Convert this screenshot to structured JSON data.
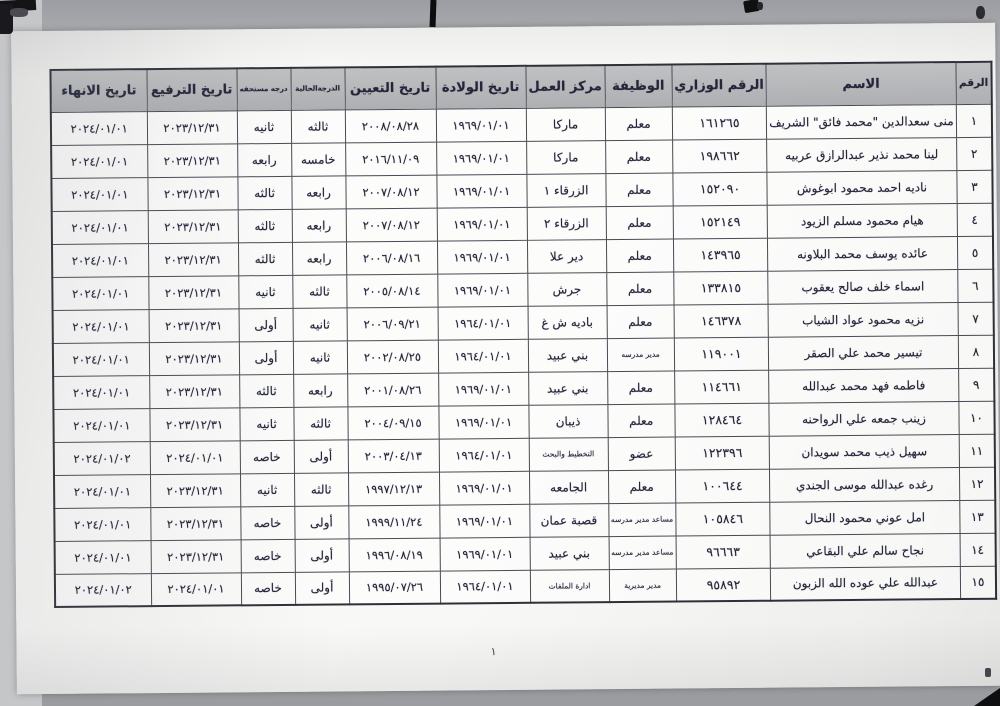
{
  "document": {
    "page_number": "١"
  },
  "table": {
    "columns": [
      "الرقم",
      "الاسم",
      "الرقم الوزاري",
      "الوظيفة",
      "مركز العمل",
      "تاريخ الولادة",
      "تاريخ التعيين",
      "الدرجةالحالية",
      "درجه مستحقه",
      "تاريخ الترفيع",
      "تاريخ الانهاء"
    ],
    "rows": [
      [
        "١",
        "منى سعدالدين \"محمد فائق\" الشريف",
        "١٦١٢٦٥",
        "معلم",
        "ماركا",
        "١٩٦٩/٠١/٠١",
        "٢٠٠٨/٠٨/٢٨",
        "ثالثه",
        "ثانيه",
        "٢٠٢٣/١٢/٣١",
        "٢٠٢٤/٠١/٠١"
      ],
      [
        "٢",
        "لينا محمد نذير عبدالرازق عربيه",
        "١٩٨٦٦٢",
        "معلم",
        "ماركا",
        "١٩٦٩/٠١/٠١",
        "٢٠١٦/١١/٠٩",
        "خامسه",
        "رابعه",
        "٢٠٢٣/١٢/٣١",
        "٢٠٢٤/٠١/٠١"
      ],
      [
        "٣",
        "ناديه احمد محمود ابوغوش",
        "١٥٢٠٩٠",
        "معلم",
        "الزرقاء ١",
        "١٩٦٩/٠١/٠١",
        "٢٠٠٧/٠٨/١٢",
        "رابعه",
        "ثالثه",
        "٢٠٢٣/١٢/٣١",
        "٢٠٢٤/٠١/٠١"
      ],
      [
        "٤",
        "هيام محمود مسلم الزيود",
        "١٥٢١٤٩",
        "معلم",
        "الزرقاء ٢",
        "١٩٦٩/٠١/٠١",
        "٢٠٠٧/٠٨/١٢",
        "رابعه",
        "ثالثه",
        "٢٠٢٣/١٢/٣١",
        "٢٠٢٤/٠١/٠١"
      ],
      [
        "٥",
        "عائده يوسف محمد البلاونه",
        "١٤٣٩٦٥",
        "معلم",
        "دير علا",
        "١٩٦٩/٠١/٠١",
        "٢٠٠٦/٠٨/١٦",
        "رابعه",
        "ثالثه",
        "٢٠٢٣/١٢/٣١",
        "٢٠٢٤/٠١/٠١"
      ],
      [
        "٦",
        "اسماء خلف صالح يعقوب",
        "١٣٣٨١٥",
        "معلم",
        "جرش",
        "١٩٦٩/٠١/٠١",
        "٢٠٠٥/٠٨/١٤",
        "ثالثه",
        "ثانيه",
        "٢٠٢٣/١٢/٣١",
        "٢٠٢٤/٠١/٠١"
      ],
      [
        "٧",
        "نزيه محمود عواد الشياب",
        "١٤٦٣٧٨",
        "معلم",
        "باديه ش غ",
        "١٩٦٤/٠١/٠١",
        "٢٠٠٦/٠٩/٢١",
        "ثانيه",
        "أولى",
        "٢٠٢٣/١٢/٣١",
        "٢٠٢٤/٠١/٠١"
      ],
      [
        "٨",
        "تيسير محمد علي الصقر",
        "١١٩٠٠١",
        "مدير مدرسه",
        "بني عبيد",
        "١٩٦٤/٠١/٠١",
        "٢٠٠٢/٠٨/٢٥",
        "ثانيه",
        "أولى",
        "٢٠٢٣/١٢/٣١",
        "٢٠٢٤/٠١/٠١"
      ],
      [
        "٩",
        "فاطمه فهد محمد عبدالله",
        "١١٤٦٦١",
        "معلم",
        "بني عبيد",
        "١٩٦٩/٠١/٠١",
        "٢٠٠١/٠٨/٢٦",
        "رابعه",
        "ثالثه",
        "٢٠٢٣/١٢/٣١",
        "٢٠٢٤/٠١/٠١"
      ],
      [
        "١٠",
        "زينب جمعه علي الرواحنه",
        "١٢٨٤٦٤",
        "معلم",
        "ذيبان",
        "١٩٦٩/٠١/٠١",
        "٢٠٠٤/٠٩/١٥",
        "ثالثه",
        "ثانيه",
        "٢٠٢٣/١٢/٣١",
        "٢٠٢٤/٠١/٠١"
      ],
      [
        "١١",
        "سهيل ذيب محمد سويدان",
        "١٢٢٣٩٦",
        "عضو",
        "التخطيط والبحث",
        "١٩٦٤/٠١/٠١",
        "٢٠٠٣/٠٤/١٣",
        "أولى",
        "خاصه",
        "٢٠٢٤/٠١/٠١",
        "٢٠٢٤/٠١/٠٢"
      ],
      [
        "١٢",
        "رغده عبدالله موسى الجندي",
        "١٠٠٦٤٤",
        "معلم",
        "الجامعه",
        "١٩٦٩/٠١/٠١",
        "١٩٩٧/١٢/١٣",
        "ثالثه",
        "ثانيه",
        "٢٠٢٣/١٢/٣١",
        "٢٠٢٤/٠١/٠١"
      ],
      [
        "١٣",
        "امل عوني محمود النحال",
        "١٠٥٨٤٦",
        "مساعد مدير مدرسه",
        "قصبة عمان",
        "١٩٦٩/٠١/٠١",
        "١٩٩٩/١١/٢٤",
        "أولى",
        "خاصه",
        "٢٠٢٣/١٢/٣١",
        "٢٠٢٤/٠١/٠١"
      ],
      [
        "١٤",
        "نجاح سالم علي البقاعي",
        "٩٦٦٦٣",
        "مساعد مدير مدرسه",
        "بني عبيد",
        "١٩٦٩/٠١/٠١",
        "١٩٩٦/٠٨/١٩",
        "أولى",
        "خاصه",
        "٢٠٢٣/١٢/٣١",
        "٢٠٢٤/٠١/٠١"
      ],
      [
        "١٥",
        "عبدالله علي عوده الله الزبون",
        "٩٥٨٩٢",
        "مدير مديرية",
        "ادارة الملفات",
        "١٩٦٤/٠١/٠١",
        "١٩٩٥/٠٧/٢٦",
        "أولى",
        "خاصه",
        "٢٠٢٤/٠١/٠١",
        "٢٠٢٤/٠١/٠٢"
      ]
    ]
  }
}
